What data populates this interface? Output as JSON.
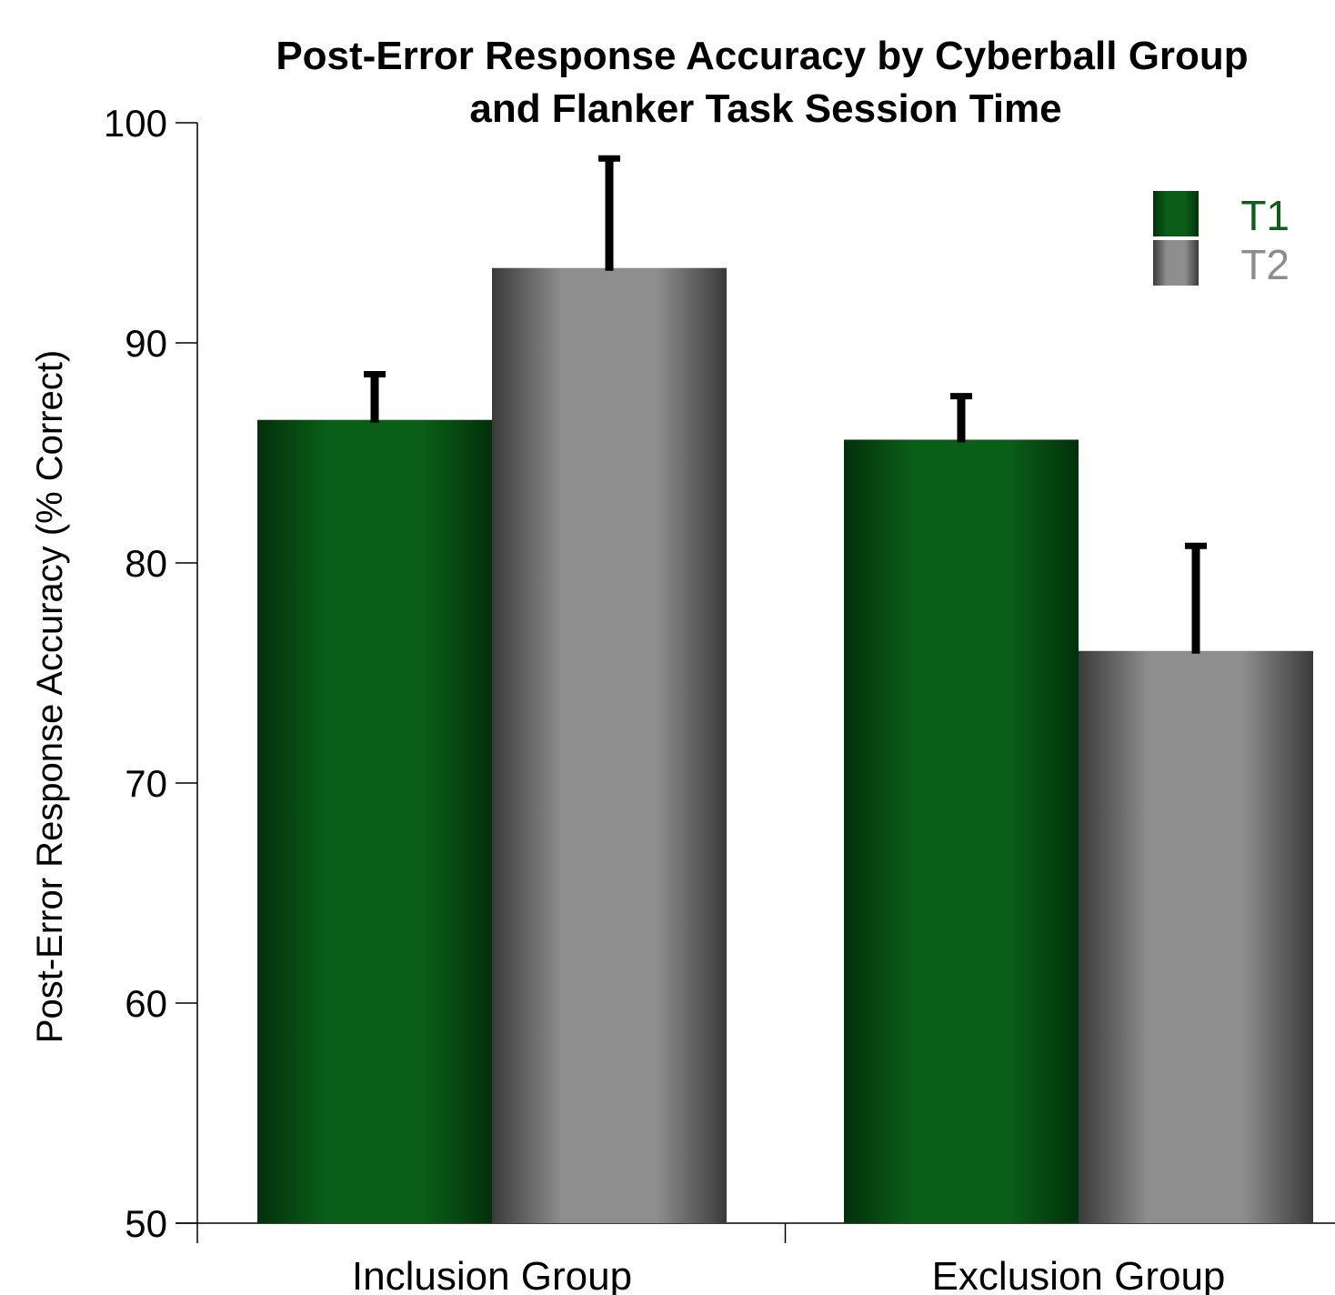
{
  "chart_data": {
    "type": "bar",
    "title": "Post-Error Response Accuracy by Cyberball Group and Flanker Task Session Time",
    "title_lines": [
      "Post-Error Response Accuracy by Cyberball Group",
      "and Flanker Task Session Time"
    ],
    "xlabel": "",
    "ylabel": "Post-Error Response Accuracy (% Correct)",
    "ylim": [
      50,
      100
    ],
    "yticks": [
      100,
      90,
      80,
      70,
      60,
      50
    ],
    "categories": [
      "Inclusion Group",
      "Exclusion Group"
    ],
    "series": [
      {
        "name": "T1",
        "values": [
          86.5,
          85.6
        ],
        "error": [
          2.2,
          2.1
        ],
        "color": "#0b5e18"
      },
      {
        "name": "T2",
        "values": [
          93.4,
          76.0
        ],
        "error": [
          5.1,
          4.9
        ],
        "color": "#8c8c8c"
      }
    ],
    "legend_position": "top-right",
    "grid": false
  }
}
